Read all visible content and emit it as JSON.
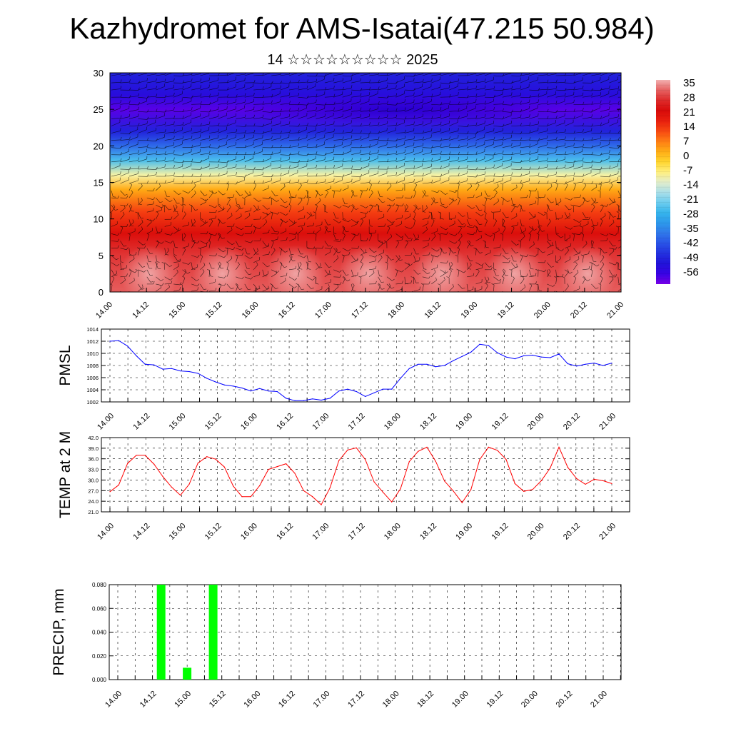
{
  "header": {
    "title": "Kazhydromet for AMS-Isatai(47.215 50.984)",
    "subtitle": "14 ☆☆☆☆☆☆☆☆☆ 2025"
  },
  "colors": {
    "pmsl_line": "#0000ff",
    "temp_line": "#ff0000",
    "precip_bar": "#00ff00",
    "grid": "#000000"
  },
  "chart_data": [
    {
      "id": "cross-section",
      "type": "heatmap",
      "title": "",
      "ylim": [
        0,
        30
      ],
      "yticks": [
        0,
        5,
        10,
        15,
        20,
        25,
        30
      ],
      "xticks": [
        "14.00",
        "14.12",
        "15.00",
        "15.12",
        "16.00",
        "16.12",
        "17.00",
        "17.12",
        "18.00",
        "18.12",
        "19.00",
        "19.12",
        "20.00",
        "20.12",
        "21.00"
      ],
      "colorbar_labels": [
        "35",
        "28",
        "21",
        "14",
        "7",
        "0",
        "-7",
        "-14",
        "-21",
        "-28",
        "-35",
        "-42",
        "-49",
        "-56"
      ],
      "profile": [
        {
          "level": 0,
          "value": 30
        },
        {
          "level": 5,
          "value": 27
        },
        {
          "level": 8,
          "value": 20
        },
        {
          "level": 11,
          "value": 12
        },
        {
          "level": 14,
          "value": 2
        },
        {
          "level": 16,
          "value": -10
        },
        {
          "level": 18,
          "value": -25
        },
        {
          "level": 20,
          "value": -38
        },
        {
          "level": 22,
          "value": -48
        },
        {
          "level": 25,
          "value": -58
        },
        {
          "level": 27,
          "value": -52
        },
        {
          "level": 30,
          "value": -48
        }
      ],
      "wind_barbs": true
    },
    {
      "id": "pmsl",
      "type": "line",
      "ylabel": "PMSL",
      "ylim": [
        1002,
        1014
      ],
      "yticks": [
        "1002",
        "1004",
        "1006",
        "1008",
        "1010",
        "1012",
        "1014"
      ],
      "xticks": [
        "14.00",
        "14.12",
        "15.00",
        "15.12",
        "16.00",
        "16.12",
        "17.00",
        "17.12",
        "18.00",
        "18.12",
        "19.00",
        "19.12",
        "20.00",
        "20.12",
        "21.00"
      ],
      "grid": true,
      "values": [
        1012,
        1012.1,
        1011.2,
        1009.6,
        1008.2,
        1008.1,
        1007.4,
        1007.5,
        1007.1,
        1007.0,
        1006.7,
        1005.9,
        1005.3,
        1004.8,
        1004.6,
        1004.3,
        1003.8,
        1004.2,
        1003.8,
        1003.7,
        1002.6,
        1002.2,
        1002.2,
        1002.5,
        1002.3,
        1002.6,
        1003.8,
        1004.1,
        1003.7,
        1002.9,
        1003.5,
        1004.1,
        1004.1,
        1005.9,
        1007.5,
        1008.2,
        1008.2,
        1007.8,
        1008.0,
        1008.8,
        1009.5,
        1010.2,
        1011.5,
        1011.3,
        1010.1,
        1009.4,
        1009.1,
        1009.6,
        1009.7,
        1009.4,
        1009.3,
        1009.9,
        1008.3,
        1007.9,
        1008.2,
        1008.4,
        1008.0,
        1008.4
      ]
    },
    {
      "id": "temp",
      "type": "line",
      "ylabel": "TEMP at 2 M",
      "ylim": [
        21,
        42
      ],
      "yticks": [
        "21.0",
        "24.0",
        "27.0",
        "30.0",
        "33.0",
        "36.0",
        "39.0",
        "42.0"
      ],
      "xticks": [
        "14.00",
        "14.12",
        "15.00",
        "15.12",
        "16.00",
        "16.12",
        "17.00",
        "17.12",
        "18.00",
        "18.12",
        "19.00",
        "19.12",
        "20.00",
        "20.12",
        "21.00"
      ],
      "grid": true,
      "values": [
        26.7,
        28.6,
        34.7,
        37.0,
        37.0,
        34.5,
        31.0,
        28.0,
        25.7,
        28.8,
        34.8,
        36.6,
        35.9,
        33.7,
        28.3,
        25.3,
        25.3,
        28.4,
        33.0,
        33.8,
        34.6,
        31.9,
        27.0,
        25.3,
        23.0,
        27.8,
        35.5,
        38.5,
        39.1,
        35.8,
        29.5,
        26.6,
        23.8,
        27.5,
        35.2,
        38.1,
        39.3,
        35.3,
        29.7,
        26.9,
        23.6,
        27.3,
        35.8,
        39.3,
        38.4,
        35.8,
        29.0,
        26.8,
        27.3,
        29.8,
        33.4,
        39.3,
        33.6,
        30.4,
        28.8,
        30.2,
        29.8,
        29.0
      ]
    },
    {
      "id": "precip",
      "type": "bar",
      "ylabel": "PRECIP, mm",
      "ylim": [
        0,
        0.08
      ],
      "yticks": [
        "0.000",
        "0.020",
        "0.040",
        "0.060",
        "0.080"
      ],
      "xticks": [
        "14.00",
        "14.12",
        "15.00",
        "15.12",
        "16.00",
        "16.12",
        "17.00",
        "17.12",
        "18.00",
        "18.12",
        "19.00",
        "19.12",
        "20.00",
        "20.12",
        "21.00"
      ],
      "grid": true,
      "bars": [
        {
          "time_h": 15,
          "value": 0.08
        },
        {
          "time_h": 24,
          "value": 0.01
        },
        {
          "time_h": 33,
          "value": 0.08
        }
      ]
    }
  ]
}
